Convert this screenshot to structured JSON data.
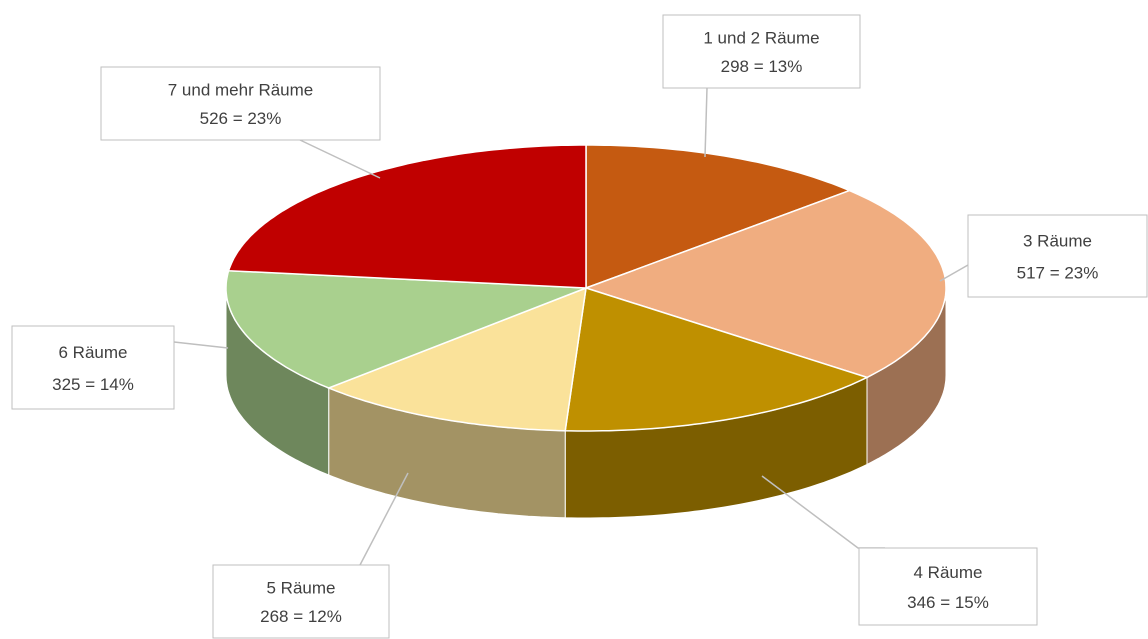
{
  "chart_data": {
    "type": "pie3d",
    "categories": [
      "1 und 2 Räume",
      "3 Räume",
      "4 Räume",
      "5 Räume",
      "6 Räume",
      "7 und mehr Räume"
    ],
    "values": [
      298,
      517,
      346,
      268,
      325,
      526
    ],
    "value_labels": [
      "298 = 13%",
      "517 = 23%",
      "346 = 15%",
      "268 = 12%",
      "325 = 14%",
      "526 = 23%"
    ],
    "colors": [
      "#c55a11",
      "#f0ad80",
      "#bf9000",
      "#fae29a",
      "#a9d08e",
      "#c00000"
    ]
  }
}
